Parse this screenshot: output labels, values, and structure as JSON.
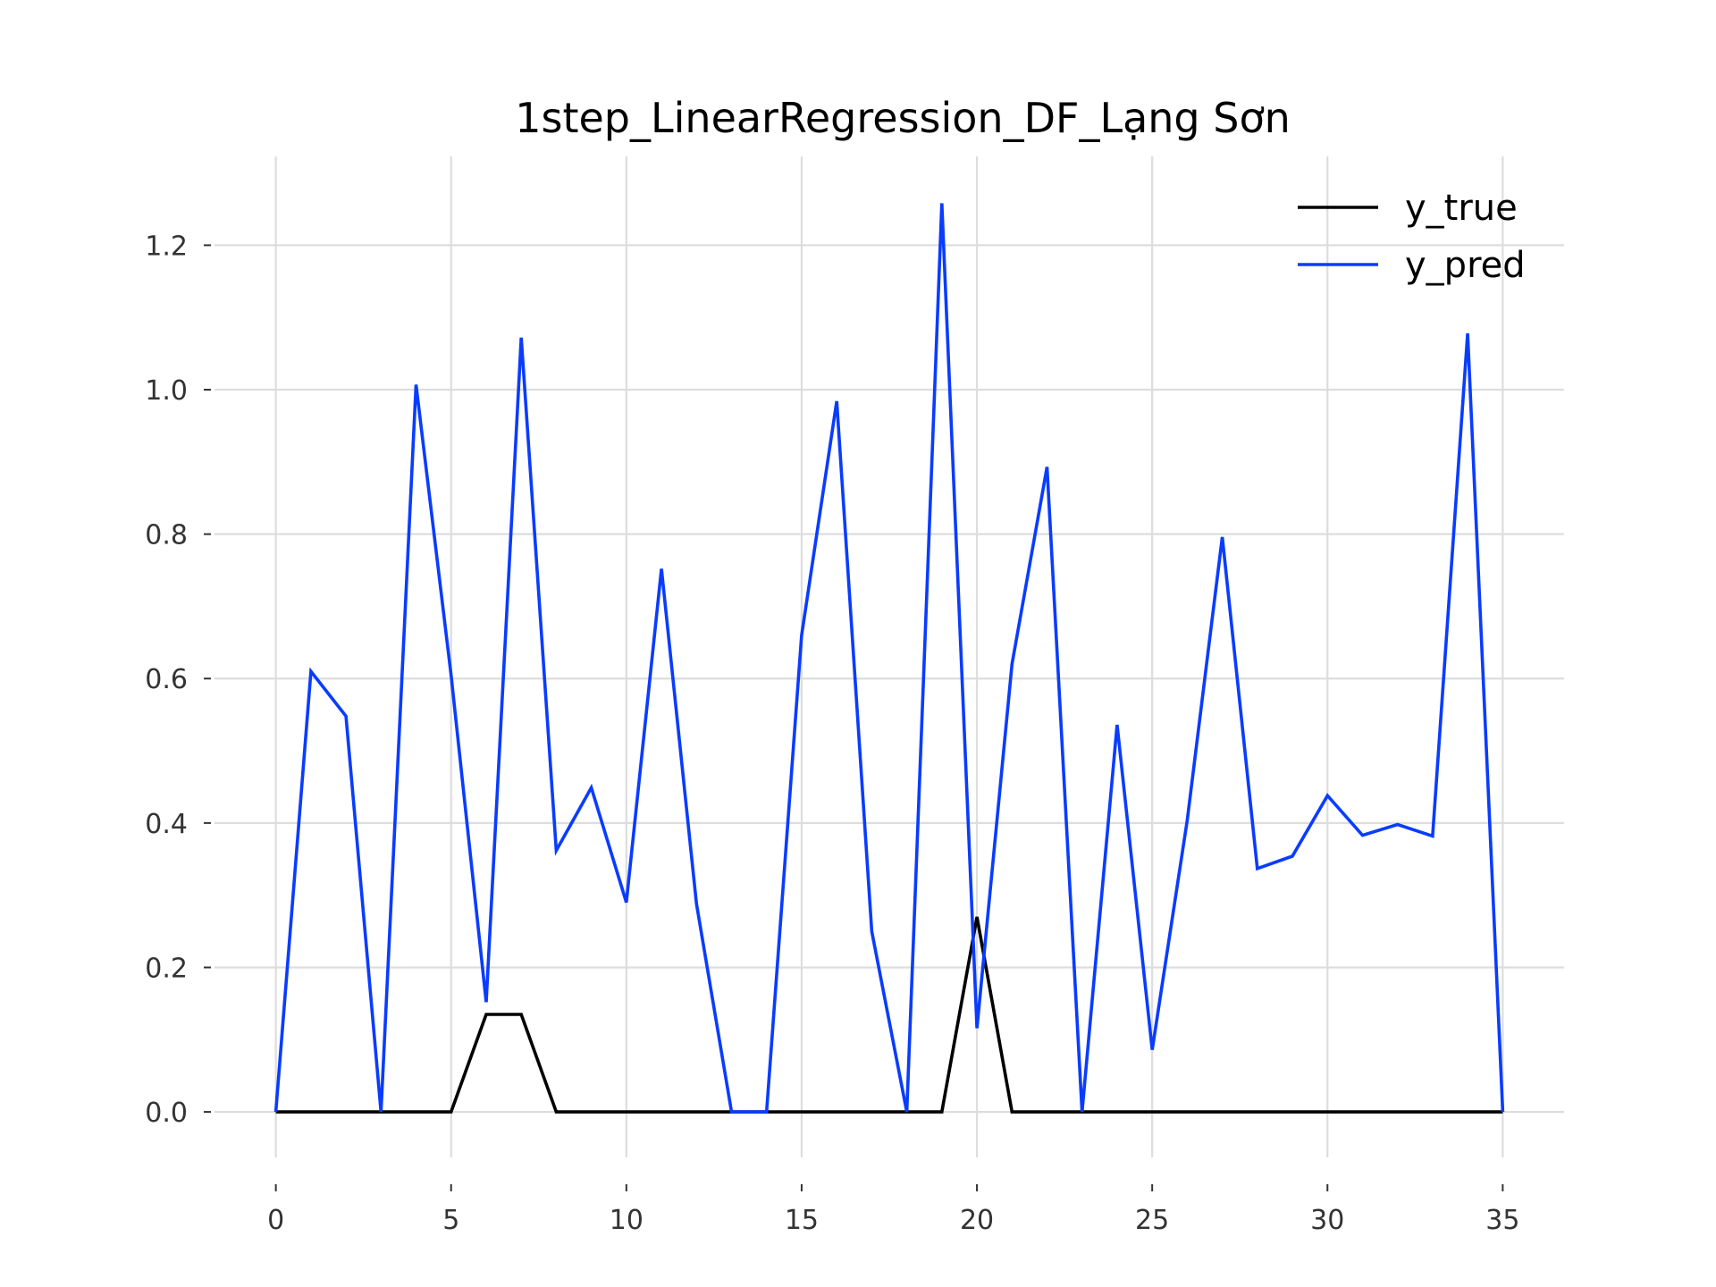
{
  "chart_data": {
    "type": "line",
    "title": "1step_LinearRegression_DF_Lạng Sơn",
    "xlabel": "",
    "ylabel": "",
    "xlim": [
      -1.75,
      36.75
    ],
    "ylim": [
      -0.063,
      1.323
    ],
    "xticks": [
      0,
      5,
      10,
      15,
      20,
      25,
      30,
      35
    ],
    "xtick_labels": [
      "0",
      "5",
      "10",
      "15",
      "20",
      "25",
      "30",
      "35"
    ],
    "yticks": [
      0.0,
      0.2,
      0.4,
      0.6,
      0.8,
      1.0,
      1.2
    ],
    "ytick_labels": [
      "0.0",
      "0.2",
      "0.4",
      "0.6",
      "0.8",
      "1.0",
      "1.2"
    ],
    "grid": true,
    "legend_position": "top-right",
    "x": [
      0,
      1,
      2,
      3,
      4,
      5,
      6,
      7,
      8,
      9,
      10,
      11,
      12,
      13,
      14,
      15,
      16,
      17,
      18,
      19,
      20,
      21,
      22,
      23,
      24,
      25,
      26,
      27,
      28,
      29,
      30,
      31,
      32,
      33,
      34,
      35
    ],
    "series": [
      {
        "name": "y_true",
        "color": "#000000",
        "values": [
          0,
          0,
          0,
          0,
          0,
          0,
          0.135,
          0.135,
          0,
          0,
          0,
          0,
          0,
          0,
          0,
          0,
          0,
          0,
          0,
          0,
          0.27,
          0,
          0,
          0,
          0,
          0,
          0,
          0,
          0,
          0,
          0,
          0,
          0,
          0,
          0,
          0
        ]
      },
      {
        "name": "y_pred",
        "color": "#0a3cff",
        "values": [
          0,
          0.61,
          0.548,
          0,
          1.007,
          0.605,
          0.152,
          1.072,
          0.362,
          0.449,
          0.29,
          0.752,
          0.288,
          0,
          0,
          0.66,
          0.984,
          0.25,
          0,
          1.258,
          0.116,
          0.62,
          0.893,
          0,
          0.536,
          0.086,
          0.404,
          0.796,
          0.337,
          0.354,
          0.438,
          0.383,
          0.398,
          0.382,
          1.078,
          0
        ]
      }
    ]
  }
}
